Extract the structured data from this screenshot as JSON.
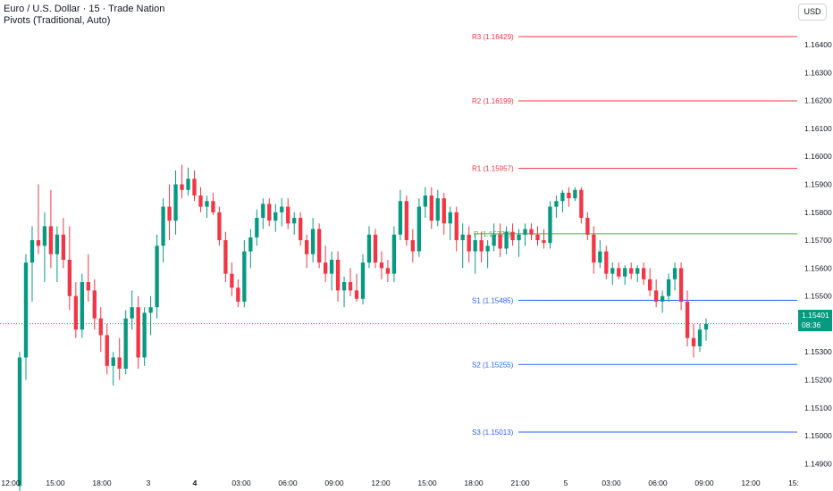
{
  "header": {
    "title": "Euro / U.S. Dollar · 15 · Trade Nation",
    "indicator": "Pivots (Traditional, Auto)"
  },
  "currency_button": "USD",
  "last_price": {
    "value": "1.15401",
    "countdown": "08:36"
  },
  "colors": {
    "up": "#089981",
    "down": "#f23645",
    "resistance": "#f23645",
    "pivot": "#4caf50",
    "support": "#2962ff",
    "grid_text": "#131722"
  },
  "pivots": [
    {
      "label": "R3 (1.16429)",
      "value": 1.16429,
      "kind": "resistance"
    },
    {
      "label": "R2 (1.16199)",
      "value": 1.16199,
      "kind": "resistance"
    },
    {
      "label": "R1 (1.15957)",
      "value": 1.15957,
      "kind": "resistance"
    },
    {
      "label": "P (1.15723)",
      "value": 1.15723,
      "kind": "pivot"
    },
    {
      "label": "S1 (1.15485)",
      "value": 1.15485,
      "kind": "support"
    },
    {
      "label": "S2 (1.15255)",
      "value": 1.15255,
      "kind": "support"
    },
    {
      "label": "S3 (1.15013)",
      "value": 1.15013,
      "kind": "support"
    }
  ],
  "chart_data": {
    "type": "candlestick",
    "title": "Euro / U.S. Dollar · 15 · Trade Nation",
    "ylim": [
      1.1485,
      1.1656
    ],
    "y_ticks": [
      "1.16400",
      "1.16300",
      "1.16200",
      "1.16100",
      "1.16000",
      "1.15900",
      "1.15800",
      "1.15700",
      "1.15600",
      "1.15500",
      "1.15400",
      "1.15300",
      "1.15200",
      "1.15100",
      "1.15000",
      "1.14900"
    ],
    "x_ticks": [
      "12:00",
      "15:00",
      "18:00",
      "3",
      "4",
      "03:00",
      "06:00",
      "09:00",
      "12:00",
      "15:00",
      "18:00",
      "21:00",
      "5",
      "03:00",
      "06:00",
      "09:00",
      "12:00",
      "15:"
    ],
    "last_price": 1.15401,
    "candles": [
      [
        1.1482,
        1.153,
        1.148,
        1.1528
      ],
      [
        1.1528,
        1.1565,
        1.152,
        1.1562
      ],
      [
        1.1562,
        1.1575,
        1.1548,
        1.157
      ],
      [
        1.157,
        1.159,
        1.1565,
        1.1568
      ],
      [
        1.1568,
        1.158,
        1.1555,
        1.1575
      ],
      [
        1.1575,
        1.1588,
        1.156,
        1.1565
      ],
      [
        1.1565,
        1.1575,
        1.1555,
        1.1572
      ],
      [
        1.1572,
        1.1578,
        1.156,
        1.1563
      ],
      [
        1.1563,
        1.1575,
        1.1545,
        1.155
      ],
      [
        1.155,
        1.1555,
        1.1535,
        1.1538
      ],
      [
        1.1538,
        1.1558,
        1.1535,
        1.1555
      ],
      [
        1.1555,
        1.1565,
        1.1548,
        1.1552
      ],
      [
        1.1552,
        1.1556,
        1.1538,
        1.1542
      ],
      [
        1.1542,
        1.1546,
        1.153,
        1.1536
      ],
      [
        1.1536,
        1.154,
        1.1522,
        1.1525
      ],
      [
        1.1525,
        1.153,
        1.1518,
        1.1528
      ],
      [
        1.1528,
        1.1535,
        1.152,
        1.1524
      ],
      [
        1.1524,
        1.1545,
        1.1522,
        1.1542
      ],
      [
        1.1542,
        1.1552,
        1.1538,
        1.1546
      ],
      [
        1.1546,
        1.155,
        1.1524,
        1.1528
      ],
      [
        1.1528,
        1.1546,
        1.1525,
        1.1544
      ],
      [
        1.1544,
        1.155,
        1.1536,
        1.1546
      ],
      [
        1.1546,
        1.1572,
        1.1542,
        1.1568
      ],
      [
        1.1568,
        1.1585,
        1.1562,
        1.1582
      ],
      [
        1.1582,
        1.159,
        1.157,
        1.1577
      ],
      [
        1.1577,
        1.1595,
        1.1572,
        1.159
      ],
      [
        1.159,
        1.1597,
        1.1585,
        1.1588
      ],
      [
        1.1588,
        1.1596,
        1.1586,
        1.1592
      ],
      [
        1.1592,
        1.1595,
        1.1584,
        1.1586
      ],
      [
        1.1586,
        1.1589,
        1.158,
        1.1582
      ],
      [
        1.1582,
        1.1586,
        1.1578,
        1.1584
      ],
      [
        1.1584,
        1.1587,
        1.1579,
        1.158
      ],
      [
        1.158,
        1.1582,
        1.1568,
        1.157
      ],
      [
        1.157,
        1.1573,
        1.1555,
        1.1558
      ],
      [
        1.1558,
        1.1562,
        1.155,
        1.1553
      ],
      [
        1.1553,
        1.1556,
        1.1546,
        1.1548
      ],
      [
        1.1548,
        1.157,
        1.1546,
        1.1566
      ],
      [
        1.1566,
        1.1574,
        1.156,
        1.1571
      ],
      [
        1.1571,
        1.1581,
        1.1568,
        1.1578
      ],
      [
        1.1578,
        1.1585,
        1.1574,
        1.1583
      ],
      [
        1.1583,
        1.1585,
        1.1575,
        1.1577
      ],
      [
        1.1577,
        1.1583,
        1.1573,
        1.158
      ],
      [
        1.158,
        1.1585,
        1.1575,
        1.1582
      ],
      [
        1.1582,
        1.1585,
        1.1574,
        1.1576
      ],
      [
        1.1576,
        1.158,
        1.1572,
        1.1578
      ],
      [
        1.1578,
        1.158,
        1.1568,
        1.157
      ],
      [
        1.157,
        1.1572,
        1.156,
        1.1565
      ],
      [
        1.1565,
        1.1578,
        1.1562,
        1.1574
      ],
      [
        1.1574,
        1.1576,
        1.156,
        1.1562
      ],
      [
        1.1562,
        1.1568,
        1.1555,
        1.1558
      ],
      [
        1.1558,
        1.1566,
        1.1552,
        1.1563
      ],
      [
        1.1563,
        1.1566,
        1.1548,
        1.1552
      ],
      [
        1.1552,
        1.1557,
        1.1546,
        1.1555
      ],
      [
        1.1555,
        1.156,
        1.155,
        1.1552
      ],
      [
        1.1552,
        1.1558,
        1.1548,
        1.1549
      ],
      [
        1.1549,
        1.1565,
        1.1547,
        1.1562
      ],
      [
        1.1562,
        1.1575,
        1.156,
        1.1572
      ],
      [
        1.1572,
        1.1574,
        1.156,
        1.1562
      ],
      [
        1.1562,
        1.1566,
        1.1556,
        1.156
      ],
      [
        1.156,
        1.1563,
        1.1555,
        1.1558
      ],
      [
        1.1558,
        1.1575,
        1.1555,
        1.1572
      ],
      [
        1.1572,
        1.1588,
        1.157,
        1.1584
      ],
      [
        1.1584,
        1.1586,
        1.1568,
        1.157
      ],
      [
        1.157,
        1.1574,
        1.1562,
        1.1566
      ],
      [
        1.1566,
        1.1585,
        1.1564,
        1.1582
      ],
      [
        1.1582,
        1.1589,
        1.1578,
        1.1586
      ],
      [
        1.1586,
        1.1589,
        1.1574,
        1.1577
      ],
      [
        1.1577,
        1.1588,
        1.1575,
        1.1585
      ],
      [
        1.1585,
        1.1587,
        1.1572,
        1.1576
      ],
      [
        1.1576,
        1.1582,
        1.157,
        1.158
      ],
      [
        1.158,
        1.1582,
        1.1566,
        1.157
      ],
      [
        1.157,
        1.1576,
        1.156,
        1.1572
      ],
      [
        1.1572,
        1.1575,
        1.1562,
        1.1566
      ],
      [
        1.1566,
        1.1572,
        1.1558,
        1.157
      ],
      [
        1.157,
        1.1573,
        1.1562,
        1.1566
      ],
      [
        1.1566,
        1.157,
        1.156,
        1.1568
      ],
      [
        1.1568,
        1.1576,
        1.1566,
        1.1572
      ],
      [
        1.1572,
        1.1576,
        1.1564,
        1.1567
      ],
      [
        1.1567,
        1.1575,
        1.1565,
        1.1573
      ],
      [
        1.1573,
        1.1576,
        1.1568,
        1.157
      ],
      [
        1.157,
        1.1574,
        1.1564,
        1.1572
      ],
      [
        1.1572,
        1.1576,
        1.1568,
        1.1574
      ],
      [
        1.1574,
        1.1576,
        1.157,
        1.1572
      ],
      [
        1.1572,
        1.1575,
        1.1568,
        1.157
      ],
      [
        1.157,
        1.1574,
        1.1567,
        1.1569
      ],
      [
        1.1569,
        1.1584,
        1.1567,
        1.1582
      ],
      [
        1.1582,
        1.1586,
        1.1578,
        1.1584
      ],
      [
        1.1584,
        1.1588,
        1.158,
        1.1587
      ],
      [
        1.1587,
        1.1589,
        1.1582,
        1.1585
      ],
      [
        1.1585,
        1.1589,
        1.1584,
        1.1588
      ],
      [
        1.1588,
        1.1589,
        1.1576,
        1.1578
      ],
      [
        1.1578,
        1.158,
        1.157,
        1.1572
      ],
      [
        1.1572,
        1.1575,
        1.1558,
        1.1562
      ],
      [
        1.1562,
        1.157,
        1.156,
        1.1566
      ],
      [
        1.1566,
        1.1568,
        1.1556,
        1.1558
      ],
      [
        1.1558,
        1.1562,
        1.1554,
        1.156
      ],
      [
        1.156,
        1.1562,
        1.1556,
        1.1557
      ],
      [
        1.1557,
        1.1561,
        1.1554,
        1.156
      ],
      [
        1.156,
        1.1562,
        1.1556,
        1.1558
      ],
      [
        1.1558,
        1.1561,
        1.1555,
        1.156
      ],
      [
        1.156,
        1.1562,
        1.1554,
        1.1556
      ],
      [
        1.1556,
        1.156,
        1.155,
        1.1552
      ],
      [
        1.1552,
        1.1556,
        1.1546,
        1.1548
      ],
      [
        1.1548,
        1.1552,
        1.1544,
        1.155
      ],
      [
        1.155,
        1.1558,
        1.1548,
        1.1556
      ],
      [
        1.1556,
        1.1562,
        1.1552,
        1.156
      ],
      [
        1.156,
        1.1562,
        1.1545,
        1.1548
      ],
      [
        1.1548,
        1.1552,
        1.1532,
        1.1535
      ],
      [
        1.1535,
        1.154,
        1.1528,
        1.1532
      ],
      [
        1.1532,
        1.154,
        1.153,
        1.1538
      ],
      [
        1.1538,
        1.1542,
        1.1534,
        1.154
      ]
    ]
  }
}
